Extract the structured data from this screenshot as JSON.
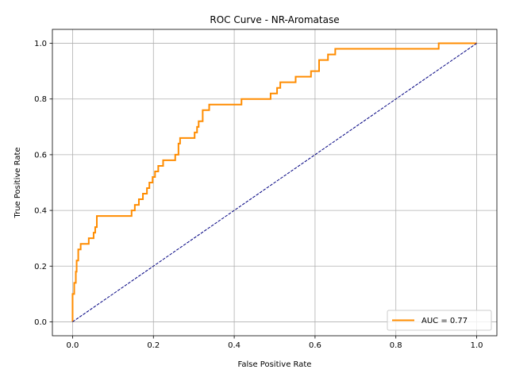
{
  "chart_data": {
    "type": "line",
    "title": "ROC Curve - NR-Aromatase",
    "xlabel": "False Positive Rate",
    "ylabel": "True Positive Rate",
    "xlim": [
      -0.05,
      1.05
    ],
    "ylim": [
      -0.05,
      1.05
    ],
    "x_ticks": [
      "0.0",
      "0.2",
      "0.4",
      "0.6",
      "0.8",
      "1.0"
    ],
    "y_ticks": [
      "0.0",
      "0.2",
      "0.4",
      "0.6",
      "0.8",
      "1.0"
    ],
    "grid": true,
    "legend_position": "lower-right",
    "series": [
      {
        "name": "AUC = 0.77",
        "color": "#ff8c00",
        "points": [
          [
            0.0,
            0.0
          ],
          [
            0.0,
            0.1
          ],
          [
            0.004,
            0.1
          ],
          [
            0.004,
            0.14
          ],
          [
            0.008,
            0.14
          ],
          [
            0.008,
            0.18
          ],
          [
            0.01,
            0.18
          ],
          [
            0.01,
            0.22
          ],
          [
            0.014,
            0.22
          ],
          [
            0.014,
            0.26
          ],
          [
            0.02,
            0.26
          ],
          [
            0.02,
            0.28
          ],
          [
            0.04,
            0.28
          ],
          [
            0.04,
            0.3
          ],
          [
            0.052,
            0.3
          ],
          [
            0.052,
            0.32
          ],
          [
            0.056,
            0.32
          ],
          [
            0.056,
            0.34
          ],
          [
            0.06,
            0.34
          ],
          [
            0.06,
            0.38
          ],
          [
            0.146,
            0.38
          ],
          [
            0.146,
            0.4
          ],
          [
            0.154,
            0.4
          ],
          [
            0.154,
            0.42
          ],
          [
            0.164,
            0.42
          ],
          [
            0.164,
            0.44
          ],
          [
            0.174,
            0.44
          ],
          [
            0.174,
            0.46
          ],
          [
            0.184,
            0.46
          ],
          [
            0.184,
            0.48
          ],
          [
            0.19,
            0.48
          ],
          [
            0.19,
            0.5
          ],
          [
            0.198,
            0.5
          ],
          [
            0.198,
            0.52
          ],
          [
            0.204,
            0.52
          ],
          [
            0.204,
            0.54
          ],
          [
            0.212,
            0.54
          ],
          [
            0.212,
            0.56
          ],
          [
            0.224,
            0.56
          ],
          [
            0.224,
            0.58
          ],
          [
            0.254,
            0.58
          ],
          [
            0.254,
            0.6
          ],
          [
            0.262,
            0.6
          ],
          [
            0.262,
            0.64
          ],
          [
            0.266,
            0.64
          ],
          [
            0.266,
            0.66
          ],
          [
            0.302,
            0.66
          ],
          [
            0.302,
            0.68
          ],
          [
            0.308,
            0.68
          ],
          [
            0.308,
            0.7
          ],
          [
            0.312,
            0.7
          ],
          [
            0.312,
            0.72
          ],
          [
            0.322,
            0.72
          ],
          [
            0.322,
            0.76
          ],
          [
            0.338,
            0.76
          ],
          [
            0.338,
            0.78
          ],
          [
            0.418,
            0.78
          ],
          [
            0.418,
            0.8
          ],
          [
            0.49,
            0.8
          ],
          [
            0.49,
            0.82
          ],
          [
            0.506,
            0.82
          ],
          [
            0.506,
            0.84
          ],
          [
            0.514,
            0.84
          ],
          [
            0.514,
            0.86
          ],
          [
            0.552,
            0.86
          ],
          [
            0.552,
            0.88
          ],
          [
            0.59,
            0.88
          ],
          [
            0.59,
            0.9
          ],
          [
            0.61,
            0.9
          ],
          [
            0.61,
            0.94
          ],
          [
            0.632,
            0.94
          ],
          [
            0.632,
            0.96
          ],
          [
            0.65,
            0.96
          ],
          [
            0.65,
            0.98
          ],
          [
            0.906,
            0.98
          ],
          [
            0.906,
            1.0
          ],
          [
            1.0,
            1.0
          ]
        ]
      },
      {
        "name": "",
        "color": "#000080",
        "dashed": true,
        "points": [
          [
            0.0,
            0.0
          ],
          [
            1.0,
            1.0
          ]
        ]
      }
    ]
  }
}
